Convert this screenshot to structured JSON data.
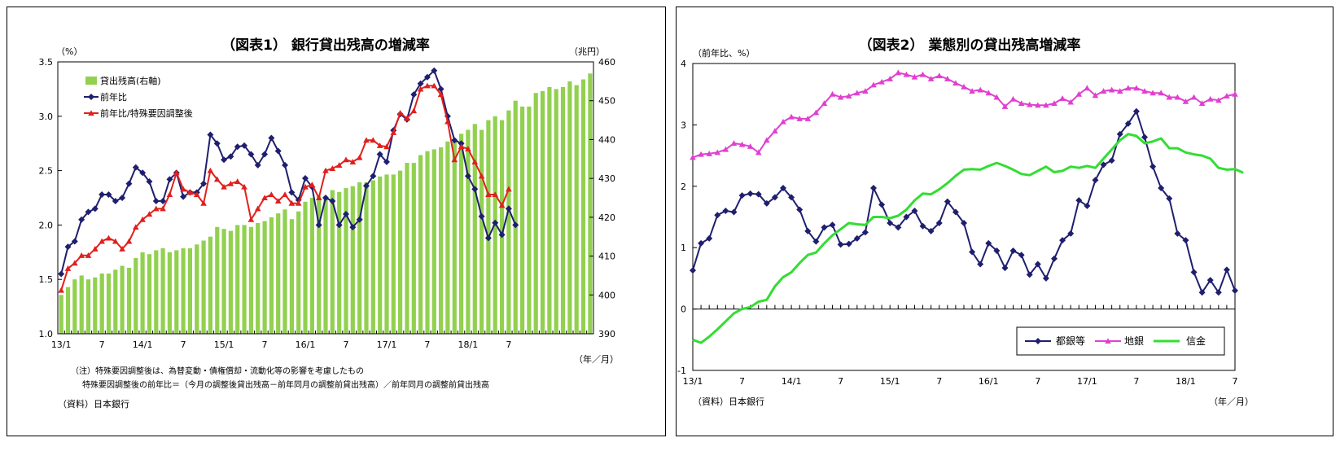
{
  "chart_data": [
    {
      "type": "bar+line",
      "title": "（図表1） 銀行貸出残高の増減率",
      "ylabel_left": "（%）",
      "ylabel_right": "（兆円）",
      "xlabel": "（年／月）",
      "ylim_left": [
        1.0,
        3.5
      ],
      "ylim_right": [
        390,
        460
      ],
      "yticks_left": [
        "1.0",
        "1.5",
        "2.0",
        "2.5",
        "3.0",
        "3.5"
      ],
      "yticks_right": [
        "390",
        "400",
        "410",
        "420",
        "430",
        "440",
        "450",
        "460"
      ],
      "x_tick_labels": [
        "13/1",
        "7",
        "14/1",
        "7",
        "15/1",
        "7",
        "16/1",
        "7",
        "17/1",
        "7",
        "18/1",
        "7"
      ],
      "legend_position": "top-left",
      "series": [
        {
          "name": "貸出残高(右軸)",
          "type": "bar",
          "axis": "right",
          "color": "#92D050",
          "values": [
            400,
            402,
            404,
            405,
            404,
            404.5,
            405.5,
            405.5,
            406.5,
            407.5,
            407,
            409.5,
            411,
            410.5,
            411.5,
            412,
            411,
            411.5,
            412,
            412,
            413,
            414,
            415,
            417.5,
            417,
            416.5,
            418,
            418,
            417.5,
            418.5,
            419,
            420,
            421,
            422,
            419.5,
            421.5,
            424,
            425,
            425.5,
            425,
            427,
            426.5,
            427.5,
            428,
            429,
            429,
            429.5,
            430.5,
            431,
            431,
            432,
            434,
            434,
            436,
            437,
            437.5,
            438,
            439.5,
            439.5,
            441.5,
            442.5,
            444,
            442.5,
            445,
            446,
            445,
            447.5,
            450,
            448.5,
            448.5,
            452,
            452.5,
            453.5,
            453,
            453.5,
            455,
            454,
            455.5,
            457
          ]
        },
        {
          "name": "前年比",
          "type": "line",
          "axis": "left",
          "color": "#1F1F6F",
          "marker": "diamond",
          "values": [
            1.55,
            1.8,
            1.85,
            2.05,
            2.12,
            2.15,
            2.28,
            2.28,
            2.22,
            2.25,
            2.38,
            2.53,
            2.48,
            2.4,
            2.22,
            2.22,
            2.42,
            2.48,
            2.26,
            2.3,
            2.3,
            2.38,
            2.83,
            2.75,
            2.6,
            2.63,
            2.72,
            2.73,
            2.65,
            2.55,
            2.65,
            2.8,
            2.68,
            2.55,
            2.3,
            2.23,
            2.43,
            2.35,
            2.0,
            2.25,
            2.22,
            2.0,
            2.1,
            1.98,
            2.05,
            2.36,
            2.45,
            2.65,
            2.58,
            2.87,
            3.02,
            2.97,
            3.2,
            3.3,
            3.36,
            3.42,
            3.25,
            3.0,
            2.78,
            2.75,
            2.45,
            2.33,
            2.08,
            1.88,
            2.02,
            1.91,
            2.15,
            2.0
          ]
        },
        {
          "name": "前年比/特殊要因調整後",
          "type": "line",
          "axis": "left",
          "color": "#E0201C",
          "marker": "triangle",
          "values": [
            1.4,
            1.6,
            1.65,
            1.72,
            1.72,
            1.78,
            1.85,
            1.88,
            1.85,
            1.78,
            1.85,
            1.98,
            2.05,
            2.1,
            2.15,
            2.15,
            2.28,
            2.48,
            2.33,
            2.3,
            2.28,
            2.2,
            2.5,
            2.42,
            2.35,
            2.38,
            2.4,
            2.35,
            2.05,
            2.15,
            2.25,
            2.28,
            2.22,
            2.28,
            2.2,
            2.2,
            2.35,
            2.37,
            2.25,
            2.5,
            2.52,
            2.55,
            2.6,
            2.58,
            2.62,
            2.78,
            2.78,
            2.73,
            2.72,
            2.85,
            3.03,
            2.98,
            3.05,
            3.25,
            3.28,
            3.28,
            3.2,
            2.95,
            2.6,
            2.72,
            2.7,
            2.58,
            2.45,
            2.28,
            2.28,
            2.18,
            2.33
          ]
        }
      ],
      "notes": [
        "（注）特殊要因調整後は、為替変動・債権償却・流動化等の影響を考慮したもの",
        "特殊要因調整後の前年比＝（今月の調整後貸出残高－前年同月の調整前貸出残高）／前年同月の調整前貸出残高"
      ],
      "source": "（資料）日本銀行"
    },
    {
      "type": "line",
      "title": "（図表2） 業態別の貸出残高増減率",
      "ylabel": "（前年比、%）",
      "xlabel": "（年／月）",
      "ylim": [
        -1,
        4
      ],
      "yticks": [
        "-1",
        "0",
        "1",
        "2",
        "3",
        "4"
      ],
      "x_tick_labels": [
        "13/1",
        "7",
        "14/1",
        "7",
        "15/1",
        "7",
        "16/1",
        "7",
        "17/1",
        "7",
        "18/1",
        "7"
      ],
      "legend_position": "bottom-right",
      "series": [
        {
          "name": "都銀等",
          "color": "#1F1F6F",
          "marker": "diamond",
          "values": [
            0.63,
            1.07,
            1.15,
            1.53,
            1.6,
            1.58,
            1.85,
            1.88,
            1.87,
            1.72,
            1.82,
            1.97,
            1.82,
            1.62,
            1.27,
            1.1,
            1.33,
            1.37,
            1.05,
            1.06,
            1.15,
            1.25,
            1.97,
            1.7,
            1.4,
            1.33,
            1.5,
            1.6,
            1.35,
            1.27,
            1.4,
            1.75,
            1.58,
            1.4,
            0.93,
            0.73,
            1.07,
            0.95,
            0.67,
            0.95,
            0.88,
            0.56,
            0.73,
            0.5,
            0.82,
            1.12,
            1.23,
            1.77,
            1.68,
            2.1,
            2.35,
            2.42,
            2.85,
            3.02,
            3.22,
            2.8,
            2.32,
            1.97,
            1.8,
            1.23,
            1.12,
            0.6,
            0.27,
            0.47,
            0.27,
            0.64,
            0.3
          ]
        },
        {
          "name": "地銀",
          "color": "#E040D0",
          "marker": "triangle",
          "values": [
            2.47,
            2.52,
            2.53,
            2.55,
            2.6,
            2.7,
            2.68,
            2.65,
            2.55,
            2.75,
            2.9,
            3.05,
            3.13,
            3.1,
            3.1,
            3.2,
            3.35,
            3.5,
            3.45,
            3.47,
            3.52,
            3.55,
            3.65,
            3.7,
            3.75,
            3.85,
            3.82,
            3.78,
            3.82,
            3.75,
            3.8,
            3.75,
            3.68,
            3.62,
            3.55,
            3.57,
            3.52,
            3.45,
            3.3,
            3.42,
            3.35,
            3.33,
            3.32,
            3.32,
            3.35,
            3.43,
            3.37,
            3.5,
            3.6,
            3.48,
            3.55,
            3.57,
            3.55,
            3.6,
            3.6,
            3.55,
            3.52,
            3.52,
            3.45,
            3.45,
            3.38,
            3.45,
            3.35,
            3.42,
            3.4,
            3.47,
            3.5
          ]
        },
        {
          "name": "信金",
          "color": "#33DD33",
          "marker": "none",
          "values": [
            -0.5,
            -0.55,
            -0.45,
            -0.33,
            -0.2,
            -0.07,
            0.0,
            0.03,
            0.12,
            0.15,
            0.37,
            0.52,
            0.6,
            0.75,
            0.88,
            0.92,
            1.07,
            1.2,
            1.3,
            1.4,
            1.38,
            1.37,
            1.5,
            1.5,
            1.48,
            1.52,
            1.62,
            1.77,
            1.88,
            1.87,
            1.95,
            2.05,
            2.17,
            2.27,
            2.28,
            2.27,
            2.33,
            2.38,
            2.33,
            2.27,
            2.2,
            2.18,
            2.25,
            2.32,
            2.23,
            2.25,
            2.32,
            2.3,
            2.33,
            2.3,
            2.45,
            2.6,
            2.75,
            2.85,
            2.82,
            2.7,
            2.73,
            2.78,
            2.62,
            2.62,
            2.55,
            2.52,
            2.5,
            2.45,
            2.3,
            2.27,
            2.28,
            2.22
          ]
        }
      ],
      "source": "（資料）日本銀行"
    }
  ]
}
